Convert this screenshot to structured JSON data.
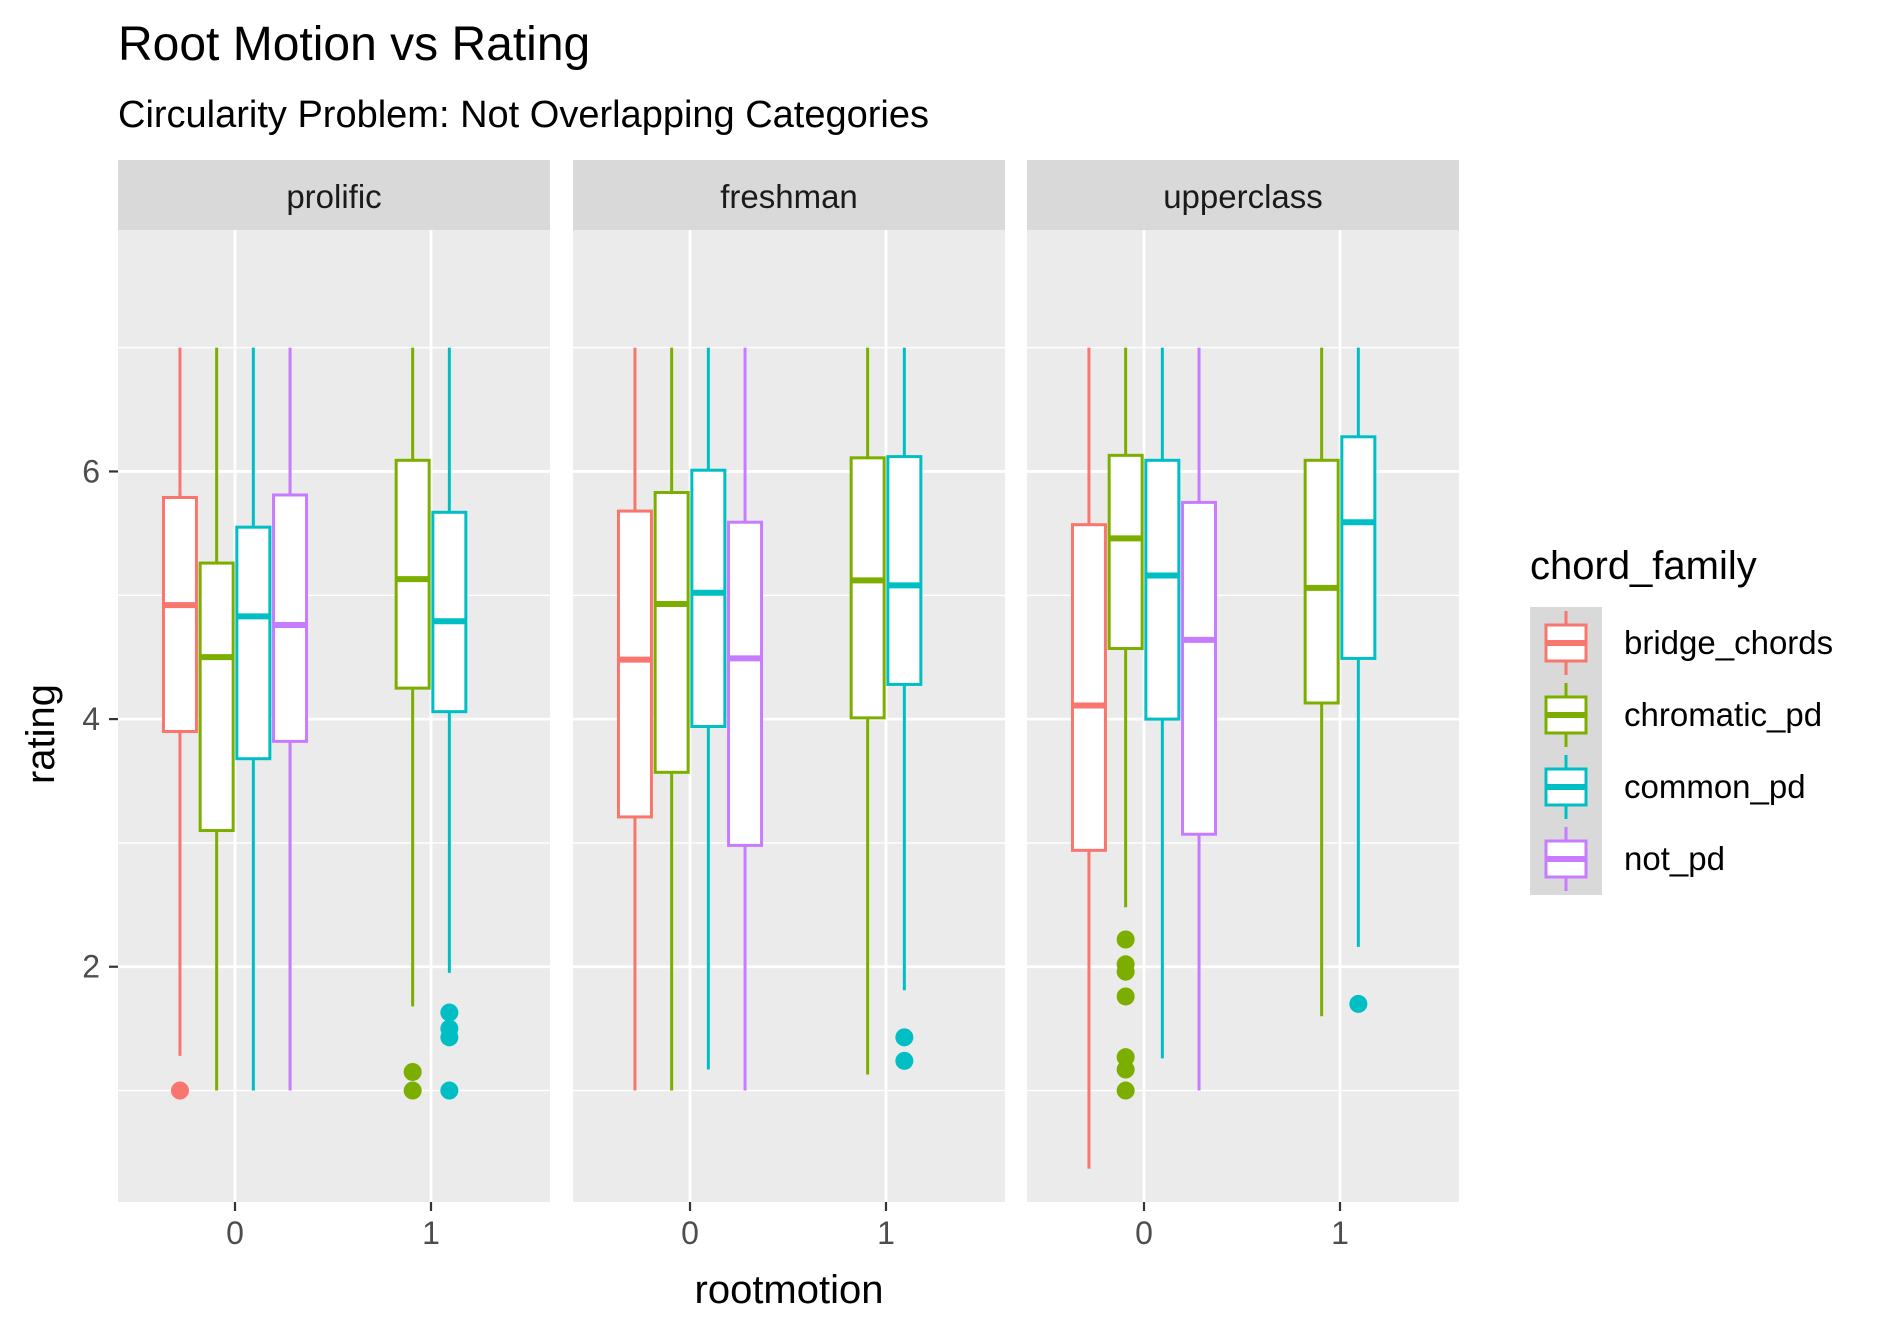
{
  "chart_data": {
    "type": "boxplot",
    "title": "Root Motion vs Rating",
    "subtitle": "Circularity Problem: Not Overlapping Categories",
    "xlabel": "rootmotion",
    "ylabel": "rating",
    "x_ticks": [
      "0",
      "1"
    ],
    "y_ticks": [
      2,
      4,
      6
    ],
    "ylim": [
      0.1,
      7.95
    ],
    "facets": [
      "prolific",
      "freshman",
      "upperclass"
    ],
    "legend": {
      "title": "chord_family",
      "position": "right",
      "items": [
        {
          "name": "bridge_chords",
          "color": "#F8766D"
        },
        {
          "name": "chromatic_pd",
          "color": "#7CAE00"
        },
        {
          "name": "common_pd",
          "color": "#00BFC4"
        },
        {
          "name": "not_pd",
          "color": "#C77CFF"
        }
      ]
    },
    "panel_background": "#EBEBEB",
    "strip_background": "#D9D9D9",
    "grid": true,
    "boxes": [
      {
        "facet": "prolific",
        "x": "0",
        "series": "bridge_chords",
        "ymin": 1.28,
        "q1": 3.9,
        "median": 4.92,
        "q3": 5.79,
        "ymax": 7.0,
        "outliers": [
          1.0
        ]
      },
      {
        "facet": "prolific",
        "x": "0",
        "series": "chromatic_pd",
        "ymin": 1.0,
        "q1": 3.1,
        "median": 4.5,
        "q3": 5.26,
        "ymax": 7.0,
        "outliers": []
      },
      {
        "facet": "prolific",
        "x": "0",
        "series": "common_pd",
        "ymin": 1.0,
        "q1": 3.68,
        "median": 4.83,
        "q3": 5.55,
        "ymax": 7.0,
        "outliers": []
      },
      {
        "facet": "prolific",
        "x": "0",
        "series": "not_pd",
        "ymin": 1.0,
        "q1": 3.82,
        "median": 4.76,
        "q3": 5.81,
        "ymax": 7.0,
        "outliers": []
      },
      {
        "facet": "prolific",
        "x": "1",
        "series": "chromatic_pd",
        "ymin": 1.68,
        "q1": 4.25,
        "median": 5.13,
        "q3": 6.09,
        "ymax": 7.0,
        "outliers": [
          1.15,
          1.0
        ]
      },
      {
        "facet": "prolific",
        "x": "1",
        "series": "common_pd",
        "ymin": 1.95,
        "q1": 4.06,
        "median": 4.79,
        "q3": 5.67,
        "ymax": 7.0,
        "outliers": [
          1.63,
          1.5,
          1.43,
          1.0
        ]
      },
      {
        "facet": "freshman",
        "x": "0",
        "series": "bridge_chords",
        "ymin": 1.0,
        "q1": 3.21,
        "median": 4.48,
        "q3": 5.68,
        "ymax": 7.0,
        "outliers": []
      },
      {
        "facet": "freshman",
        "x": "0",
        "series": "chromatic_pd",
        "ymin": 1.0,
        "q1": 3.57,
        "median": 4.93,
        "q3": 5.83,
        "ymax": 7.0,
        "outliers": []
      },
      {
        "facet": "freshman",
        "x": "0",
        "series": "common_pd",
        "ymin": 1.17,
        "q1": 3.94,
        "median": 5.02,
        "q3": 6.01,
        "ymax": 7.0,
        "outliers": []
      },
      {
        "facet": "freshman",
        "x": "0",
        "series": "not_pd",
        "ymin": 1.0,
        "q1": 2.98,
        "median": 4.49,
        "q3": 5.59,
        "ymax": 7.0,
        "outliers": []
      },
      {
        "facet": "freshman",
        "x": "1",
        "series": "chromatic_pd",
        "ymin": 1.13,
        "q1": 4.01,
        "median": 5.12,
        "q3": 6.11,
        "ymax": 7.0,
        "outliers": []
      },
      {
        "facet": "freshman",
        "x": "1",
        "series": "common_pd",
        "ymin": 1.81,
        "q1": 4.28,
        "median": 5.08,
        "q3": 6.12,
        "ymax": 7.0,
        "outliers": [
          1.43,
          1.24
        ]
      },
      {
        "facet": "upperclass",
        "x": "0",
        "series": "bridge_chords",
        "ymin": 0.37,
        "q1": 2.94,
        "median": 4.11,
        "q3": 5.57,
        "ymax": 7.0,
        "outliers": []
      },
      {
        "facet": "upperclass",
        "x": "0",
        "series": "chromatic_pd",
        "ymin": 2.48,
        "q1": 4.57,
        "median": 5.46,
        "q3": 6.13,
        "ymax": 7.0,
        "outliers": [
          2.22,
          2.02,
          1.96,
          1.76,
          1.27,
          1.17,
          1.0
        ]
      },
      {
        "facet": "upperclass",
        "x": "0",
        "series": "common_pd",
        "ymin": 1.26,
        "q1": 4.0,
        "median": 5.16,
        "q3": 6.09,
        "ymax": 7.0,
        "outliers": []
      },
      {
        "facet": "upperclass",
        "x": "0",
        "series": "not_pd",
        "ymin": 1.0,
        "q1": 3.07,
        "median": 4.64,
        "q3": 5.75,
        "ymax": 7.0,
        "outliers": []
      },
      {
        "facet": "upperclass",
        "x": "1",
        "series": "chromatic_pd",
        "ymin": 1.6,
        "q1": 4.13,
        "median": 5.06,
        "q3": 6.09,
        "ymax": 7.0,
        "outliers": []
      },
      {
        "facet": "upperclass",
        "x": "1",
        "series": "common_pd",
        "ymin": 2.16,
        "q1": 4.49,
        "median": 5.59,
        "q3": 6.28,
        "ymax": 7.0,
        "outliers": [
          1.7
        ]
      }
    ]
  }
}
